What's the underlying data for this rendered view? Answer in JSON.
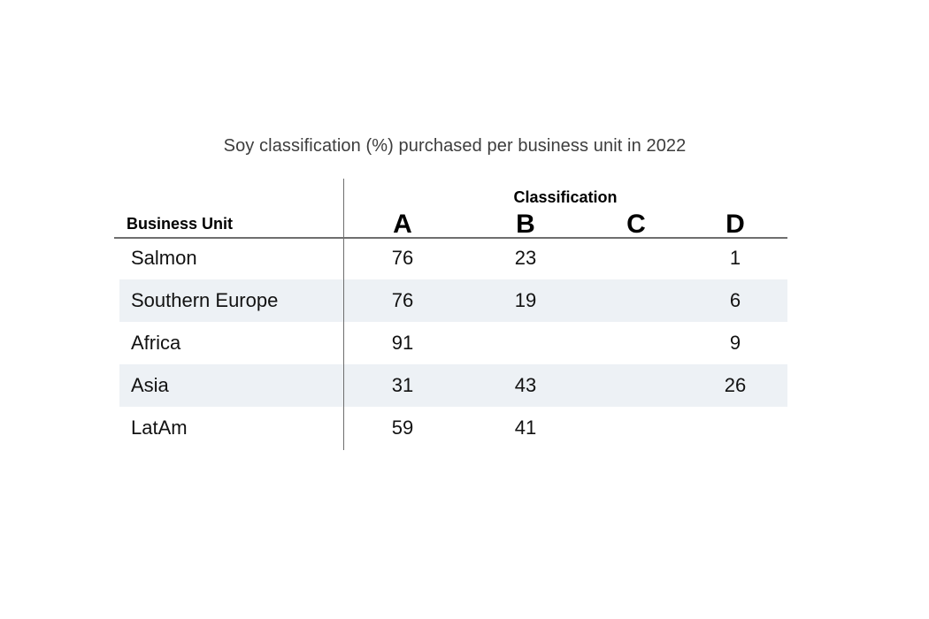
{
  "chart_data": {
    "type": "table",
    "title": "Soy classification (%) purchased per business unit in 2022",
    "row_header_label": "Business Unit",
    "column_group_label": "Classification",
    "columns": [
      "A",
      "B",
      "C",
      "D"
    ],
    "rows": [
      {
        "label": "Salmon",
        "values": [
          "76",
          "23",
          "",
          "1"
        ]
      },
      {
        "label": "Southern Europe",
        "values": [
          "76",
          "19",
          "",
          "6"
        ]
      },
      {
        "label": "Africa",
        "values": [
          "91",
          "",
          "",
          "9"
        ]
      },
      {
        "label": "Asia",
        "values": [
          "31",
          "43",
          "",
          "26"
        ]
      },
      {
        "label": "LatAm",
        "values": [
          "59",
          "41",
          "",
          ""
        ]
      }
    ],
    "layout": {
      "legend": "none",
      "zebra_stripe_rows": [
        2,
        4
      ],
      "zebra_stripe_color": "#edf1f5",
      "rule_color": "#6f6f6f",
      "title_color": "#3d3d3d",
      "text_color": "#121212",
      "background_color": "#ffffff"
    }
  }
}
